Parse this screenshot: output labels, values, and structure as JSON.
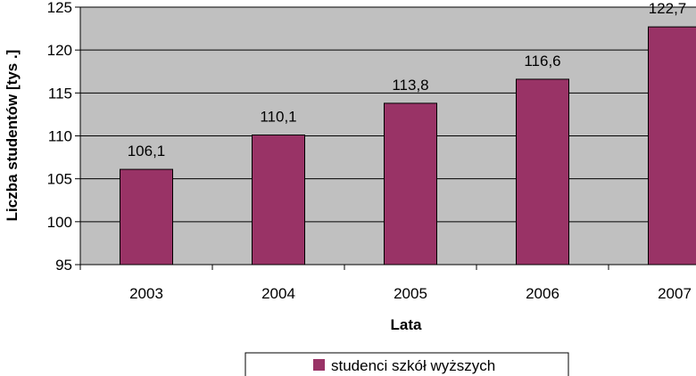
{
  "chart_data": {
    "type": "bar",
    "categories": [
      "2003",
      "2004",
      "2005",
      "2006",
      "2007"
    ],
    "series": [
      {
        "name": "studenci szkół wyższych",
        "values": [
          106.1,
          110.1,
          113.8,
          116.6,
          122.7
        ]
      }
    ],
    "data_labels": [
      "106,1",
      "110,1",
      "113,8",
      "116,6",
      "122,7"
    ],
    "yticks": [
      95,
      100,
      105,
      110,
      115,
      120,
      125
    ],
    "ylim": [
      95,
      125
    ],
    "xlabel": "Lata",
    "ylabel": "Liczba studentów [tys .]",
    "grid": true,
    "legend": "bottom",
    "colors": {
      "bar": "#993366",
      "plot_bg": "#c0c0c0",
      "grid": "#000000"
    }
  }
}
